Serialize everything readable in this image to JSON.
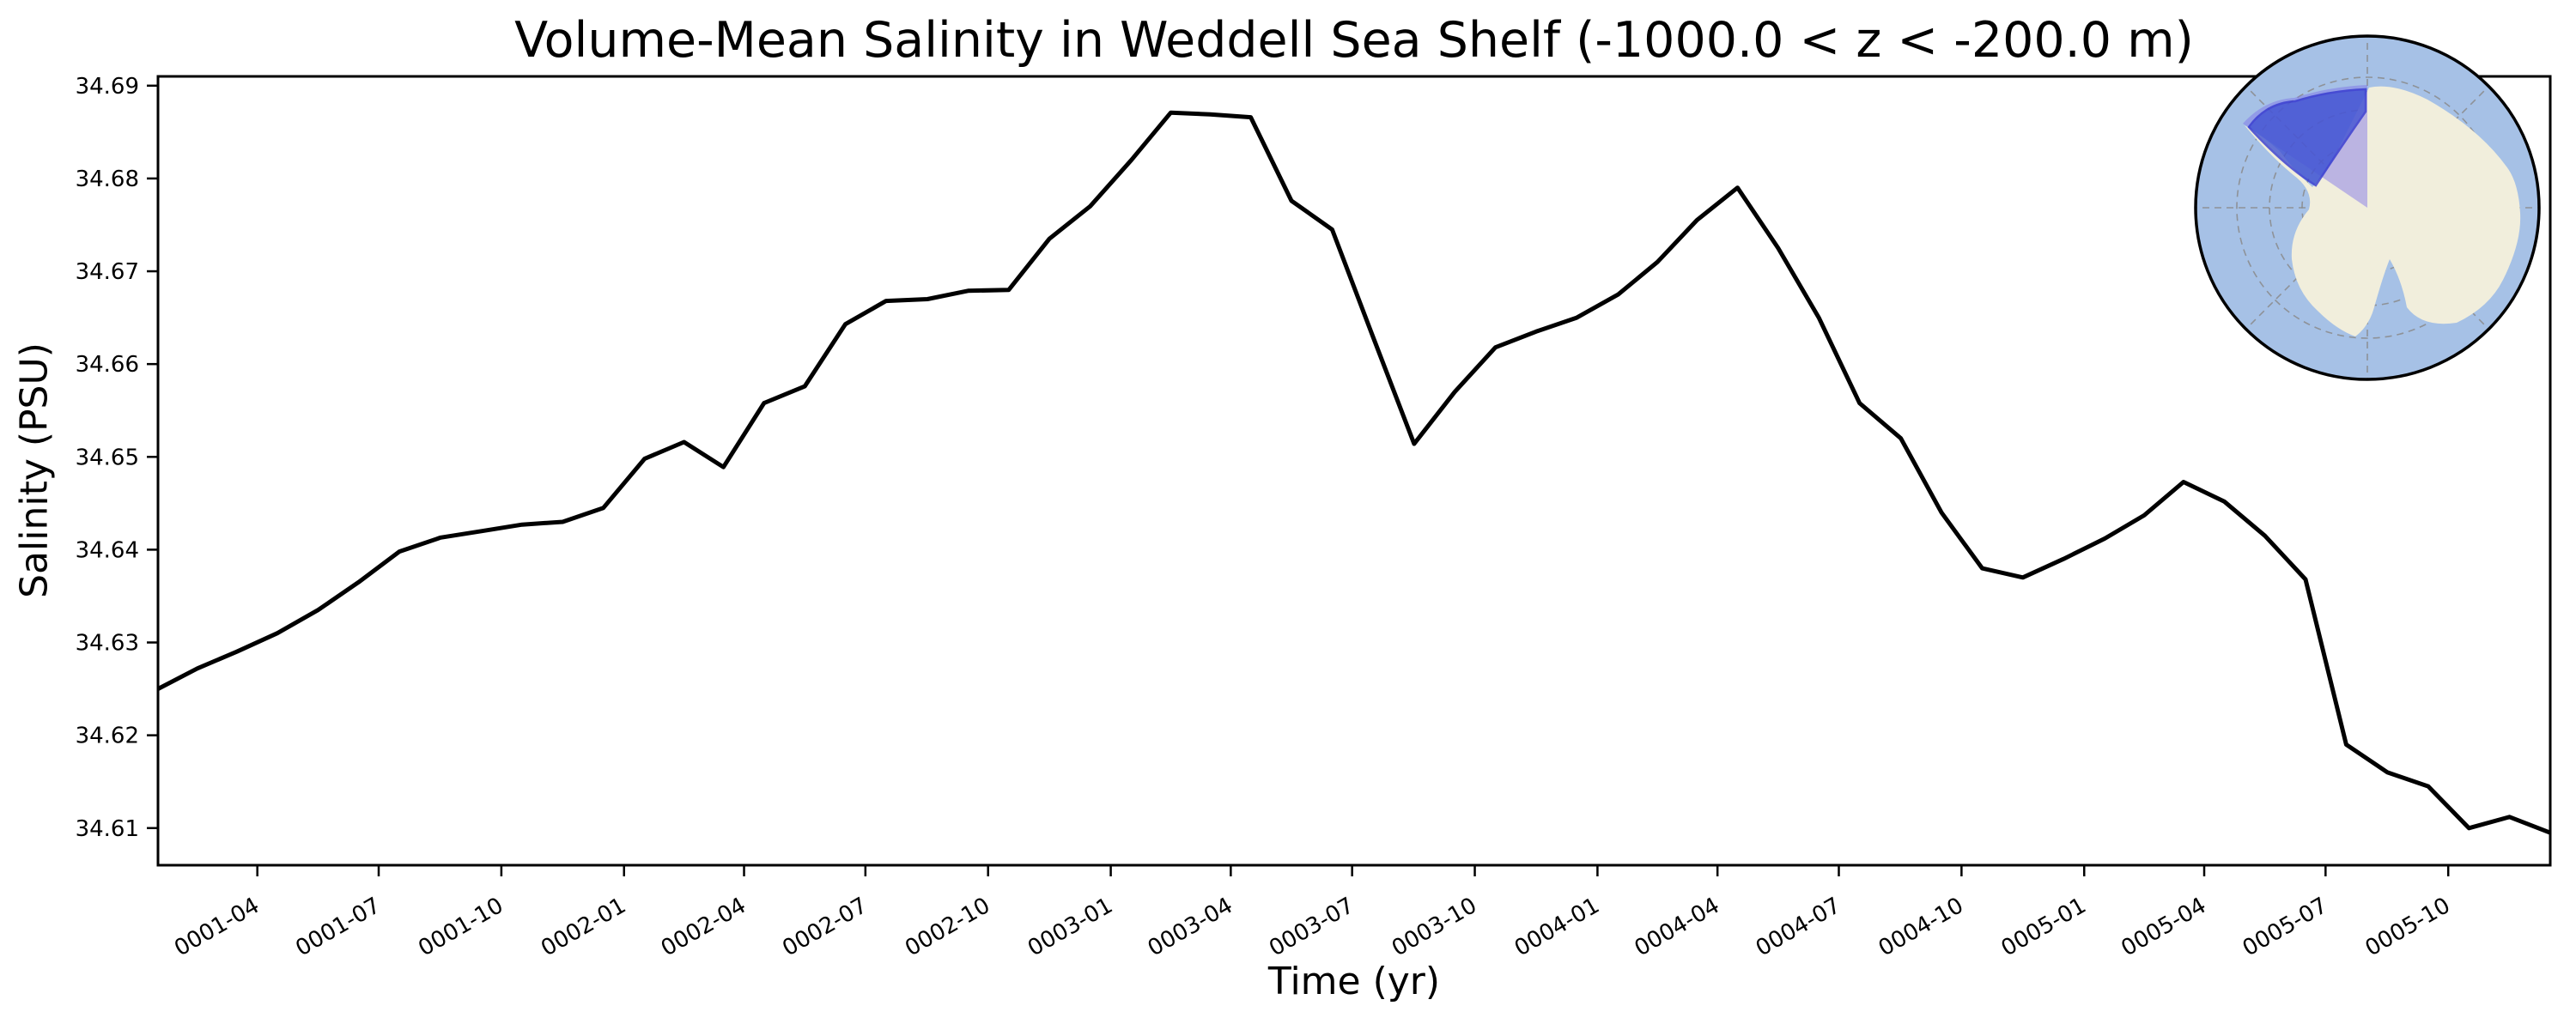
{
  "chart_data": {
    "type": "line",
    "title": "Volume-Mean Salinity in Weddell Sea Shelf (-1000.0 < z < -200.0 m)",
    "xlabel": "Time (yr)",
    "ylabel": "Salinity (PSU)",
    "legend": "none",
    "grid": false,
    "line_color": "#000000",
    "x": [
      "0001-01",
      "0001-02",
      "0001-03",
      "0001-04",
      "0001-05",
      "0001-06",
      "0001-07",
      "0001-08",
      "0001-09",
      "0001-10",
      "0001-11",
      "0001-12",
      "0002-01",
      "0002-02",
      "0002-03",
      "0002-04",
      "0002-05",
      "0002-06",
      "0002-07",
      "0002-08",
      "0002-09",
      "0002-10",
      "0002-11",
      "0002-12",
      "0003-01",
      "0003-02",
      "0003-03",
      "0003-04",
      "0003-05",
      "0003-06",
      "0003-07",
      "0003-08",
      "0003-09",
      "0003-10",
      "0003-11",
      "0003-12",
      "0004-01",
      "0004-02",
      "0004-03",
      "0004-04",
      "0004-05",
      "0004-06",
      "0004-07",
      "0004-08",
      "0004-09",
      "0004-10",
      "0004-11",
      "0004-12",
      "0005-01",
      "0005-02",
      "0005-03",
      "0005-04",
      "0005-05",
      "0005-06",
      "0005-07",
      "0005-08",
      "0005-09",
      "0005-10",
      "0005-11",
      "0005-12"
    ],
    "values": [
      34.625,
      34.6272,
      34.629,
      34.631,
      34.6335,
      34.6365,
      34.6398,
      34.6413,
      34.642,
      34.6427,
      34.643,
      34.6445,
      34.6498,
      34.6516,
      34.6489,
      34.6558,
      34.6576,
      34.6643,
      34.6668,
      34.667,
      34.6679,
      34.668,
      34.6735,
      34.677,
      34.682,
      34.6871,
      34.6869,
      34.6866,
      34.6776,
      34.6745,
      34.663,
      34.6514,
      34.657,
      34.6618,
      34.6635,
      34.665,
      34.6675,
      34.671,
      34.6755,
      34.679,
      34.6725,
      34.665,
      34.6558,
      34.652,
      34.644,
      34.638,
      34.637,
      34.639,
      34.6412,
      34.6437,
      34.6473,
      34.6452,
      34.6415,
      34.6368,
      34.619,
      34.616,
      34.6145,
      34.61,
      34.6112,
      34.6095
    ],
    "ylim": [
      34.606,
      34.691
    ],
    "yticks": [
      34.61,
      34.62,
      34.63,
      34.64,
      34.65,
      34.66,
      34.67,
      34.68,
      34.69
    ],
    "xtick_labels": [
      "0001-04",
      "0001-07",
      "0001-10",
      "0002-01",
      "0002-04",
      "0002-07",
      "0002-10",
      "0003-01",
      "0003-04",
      "0003-07",
      "0003-10",
      "0004-01",
      "0004-04",
      "0004-07",
      "0004-10",
      "0005-01",
      "0005-04",
      "0005-07",
      "0005-10"
    ],
    "xtick_rotation_deg": 30,
    "legend_position": "none"
  },
  "inset_map": {
    "description": "South polar stereographic map of Antarctica with Weddell Sea shelf region highlighted",
    "ocean_color": "#a6c1e6",
    "land_color": "#f1eedc",
    "region_overlay_color": "#7b6ce8",
    "shelf_region_color": "#4253d2",
    "shelf_outline_color": "#3438cf",
    "graticule_color": "#8a8a8a",
    "border_color": "#000000"
  }
}
